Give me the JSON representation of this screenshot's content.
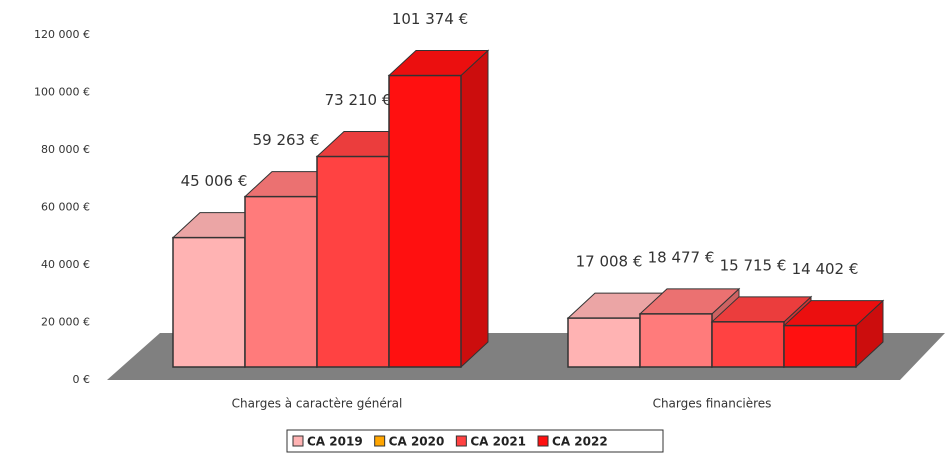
{
  "chart_data": {
    "type": "bar3d",
    "categories": [
      "Charges à caractère général",
      "Charges financières"
    ],
    "series": [
      {
        "name": "CA 2019",
        "color": "#ffb3b3",
        "legend_color": "#ffb3b3",
        "values": [
          45006,
          17008
        ],
        "value_labels": [
          "45 006 €",
          "17 008 €"
        ]
      },
      {
        "name": "CA 2020",
        "color": "#ff7b7b",
        "legend_color": "#ffa500",
        "values": [
          59263,
          18477
        ],
        "value_labels": [
          "59 263 €",
          "18 477 €"
        ]
      },
      {
        "name": "CA 2021",
        "color": "#ff4242",
        "legend_color": "#ff4242",
        "values": [
          73210,
          15715
        ],
        "value_labels": [
          "73 210 €",
          "15 715 €"
        ]
      },
      {
        "name": "CA 2022",
        "color": "#ff1010",
        "legend_color": "#ff1010",
        "values": [
          101374,
          14402
        ],
        "value_labels": [
          "101 374 €",
          "14 402 €"
        ]
      }
    ],
    "ylim": [
      0,
      120000
    ],
    "yticks": [
      {
        "value": 0,
        "label": "0 €"
      },
      {
        "value": 20000,
        "label": "20 000 €"
      },
      {
        "value": 40000,
        "label": "40 000 €"
      },
      {
        "value": 60000,
        "label": "60 000 €"
      },
      {
        "value": 80000,
        "label": "80 000 €"
      },
      {
        "value": 100000,
        "label": "100 000 €"
      },
      {
        "value": 120000,
        "label": "120 000 €"
      }
    ]
  }
}
